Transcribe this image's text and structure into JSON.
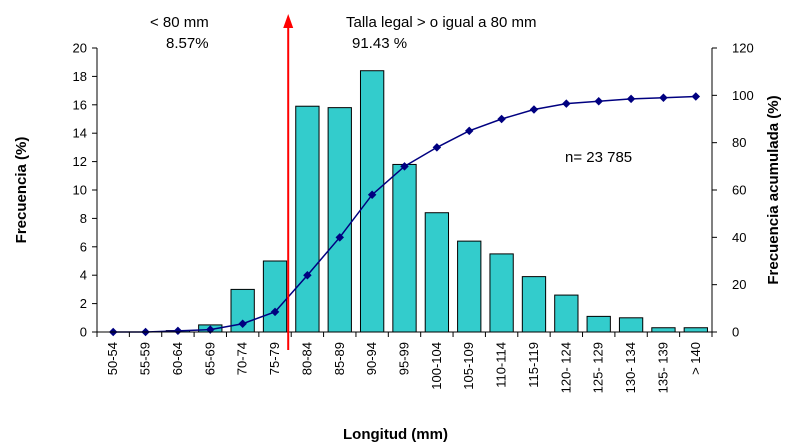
{
  "chart_data": {
    "type": "bar",
    "categories": [
      "50-54",
      "55-59",
      "60-64",
      "65-69",
      "70-74",
      "75-79",
      "80-84",
      "85-89",
      "90-94",
      "95-99",
      "100-104",
      "105-109",
      "110-114",
      "115-119",
      "120- 124",
      "125- 129",
      "130- 134",
      "135- 139",
      "> 140"
    ],
    "series": [
      {
        "type": "bar",
        "axis": "left",
        "values": [
          0,
          0,
          0.1,
          0.5,
          3.0,
          5.0,
          15.9,
          15.8,
          18.4,
          11.8,
          8.4,
          6.4,
          5.5,
          3.9,
          2.6,
          1.1,
          1.0,
          0.3,
          0.3
        ],
        "color": "#33cccc"
      },
      {
        "type": "line",
        "axis": "right",
        "values": [
          0,
          0,
          0.5,
          1,
          3.5,
          8.5,
          24,
          40,
          58,
          70,
          78,
          85,
          90,
          94,
          96.5,
          97.5,
          98.5,
          99,
          99.5
        ],
        "color": "#000080"
      }
    ],
    "xlabel": "Longitud (mm)",
    "ylabel": "Frecuencia (%)",
    "y2label": "Frecuencia acumulada (%)",
    "ylim": [
      0,
      20
    ],
    "y2lim": [
      0,
      120
    ],
    "yticks": [
      "0",
      "2",
      "4",
      "6",
      "8",
      "10",
      "12",
      "14",
      "16",
      "18",
      "20"
    ],
    "y2ticks": [
      "0",
      "20",
      "40",
      "60",
      "80",
      "100",
      "120"
    ],
    "marker_line": {
      "x": 79.5,
      "color": "#ff0000"
    },
    "annotations": {
      "left_label": "< 80 mm",
      "left_value": "8.57%",
      "right_label": "Talla legal > o igual a 80 mm",
      "right_value": "91.43 %",
      "n": "n= 23 785"
    }
  }
}
